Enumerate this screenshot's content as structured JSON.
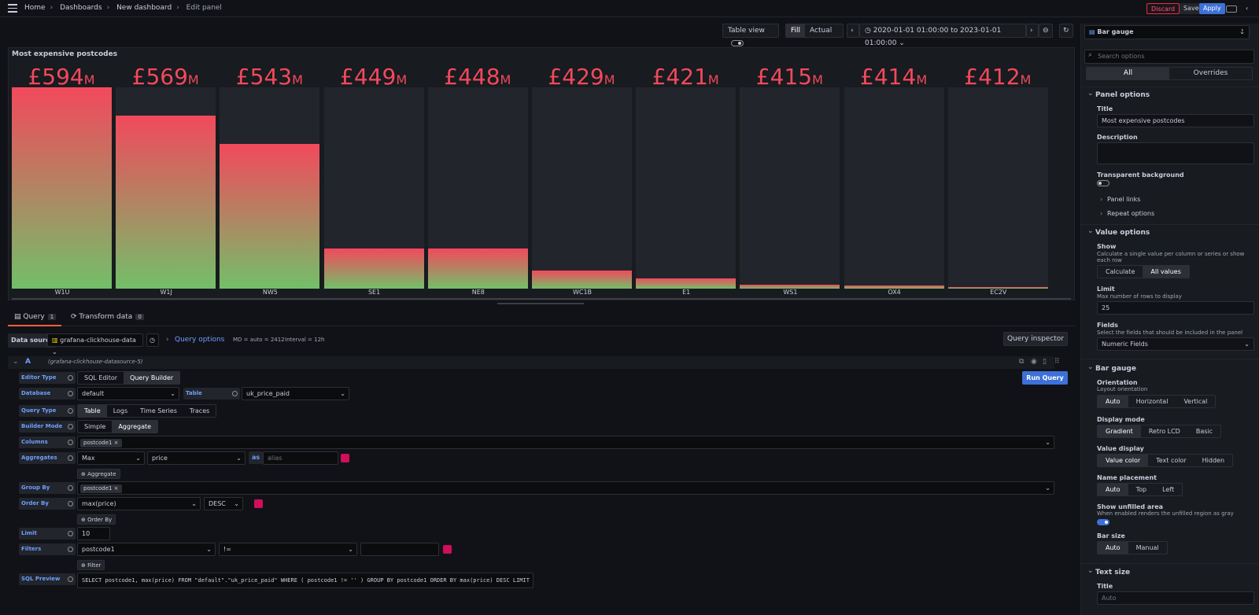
{
  "breadcrumbs": [
    "Home",
    "Dashboards",
    "New dashboard",
    "Edit panel"
  ],
  "top_buttons": {
    "discard": "Discard",
    "save": "Save",
    "apply": "Apply"
  },
  "toolbar": {
    "table_view": "Table view",
    "fill": "Fill",
    "actual": "Actual",
    "time_range": "2020-01-01 01:00:00 to 2023-01-01 01:00:00"
  },
  "panel": {
    "title": "Most expensive postcodes"
  },
  "chart_data": {
    "type": "bar",
    "title": "Most expensive postcodes",
    "categories": [
      "W1U",
      "W1J",
      "NW5",
      "SE1",
      "NE8",
      "WC1B",
      "E1",
      "WS1",
      "OX4",
      "EC2V"
    ],
    "values": [
      594,
      569,
      543,
      449,
      448,
      429,
      421,
      415,
      414,
      412
    ],
    "value_labels": [
      "£594",
      "£569",
      "£543",
      "£449",
      "£448",
      "£429",
      "£421",
      "£415",
      "£414",
      "£412"
    ],
    "unit_suffix": "M",
    "fill_fraction": [
      1.0,
      0.86,
      0.72,
      0.2,
      0.2,
      0.09,
      0.05,
      0.02,
      0.015,
      0.006
    ]
  },
  "tabs": {
    "query": "Query",
    "query_count": "1",
    "transform": "Transform data",
    "transform_count": "0"
  },
  "datasource": {
    "label": "Data source",
    "value": "grafana-clickhouse-data",
    "query_options": "Query options",
    "md": "MD = auto = 2412",
    "interval": "Interval = 12h",
    "inspector": "Query inspector"
  },
  "query": {
    "letter": "A",
    "ds_ref": "(grafana-clickhouse-datasource-5)",
    "editor_type_label": "Editor Type",
    "sql_editor": "SQL Editor",
    "query_builder": "Query Builder",
    "run": "Run Query",
    "database_label": "Database",
    "database": "default",
    "table_label": "Table",
    "table": "uk_price_paid",
    "query_type_label": "Query Type",
    "qt": [
      "Table",
      "Logs",
      "Time Series",
      "Traces"
    ],
    "builder_mode_label": "Builder Mode",
    "simple": "Simple",
    "aggregate": "Aggregate",
    "columns_label": "Columns",
    "column_chip": "postcode1",
    "aggregates_label": "Aggregates",
    "agg_fn": "Max",
    "agg_col": "price",
    "as": "as",
    "alias_ph": "alias",
    "add_aggregate": "Aggregate",
    "group_by_label": "Group By",
    "group_chip": "postcode1",
    "order_by_label": "Order By",
    "order_expr": "max(price)",
    "order_dir": "DESC",
    "add_order": "Order By",
    "limit_label": "Limit",
    "limit": "10",
    "filters_label": "Filters",
    "filter_col": "postcode1",
    "filter_op": "!=",
    "add_filter": "Filter",
    "sql_preview_label": "SQL Preview",
    "sql": "SELECT postcode1, max(price) FROM \"default\".\"uk_price_paid\" WHERE   ( postcode1 != '' ) GROUP BY postcode1 ORDER BY max(price) DESC LIMIT 10"
  },
  "side": {
    "viz": "Bar gauge",
    "search_ph": "Search options",
    "all": "All",
    "overrides": "Overrides",
    "panel_options": "Panel options",
    "title_label": "Title",
    "title_value": "Most expensive postcodes",
    "description_label": "Description",
    "transparent": "Transparent background",
    "panel_links": "Panel links",
    "repeat_options": "Repeat options",
    "value_options": "Value options",
    "show": "Show",
    "show_desc": "Calculate a single value per column or series or show each row",
    "calculate": "Calculate",
    "all_values": "All values",
    "limit": "Limit",
    "limit_desc": "Max number of rows to display",
    "limit_value": "25",
    "fields": "Fields",
    "fields_desc": "Select the fields that should be included in the panel",
    "fields_value": "Numeric Fields",
    "bar_gauge": "Bar gauge",
    "orientation": "Orientation",
    "orientation_desc": "Layout orientation",
    "or_opts": [
      "Auto",
      "Horizontal",
      "Vertical"
    ],
    "display_mode": "Display mode",
    "dm_opts": [
      "Gradient",
      "Retro LCD",
      "Basic"
    ],
    "value_display": "Value display",
    "vd_opts": [
      "Value color",
      "Text color",
      "Hidden"
    ],
    "name_placement": "Name placement",
    "np_opts": [
      "Auto",
      "Top",
      "Left"
    ],
    "show_unfilled": "Show unfilled area",
    "show_unfilled_desc": "When enabled renders the unfilled region as gray",
    "bar_size": "Bar size",
    "bs_opts": [
      "Auto",
      "Manual"
    ],
    "text_size": "Text size",
    "ts_title": "Title",
    "ts_title_ph": "Auto"
  }
}
